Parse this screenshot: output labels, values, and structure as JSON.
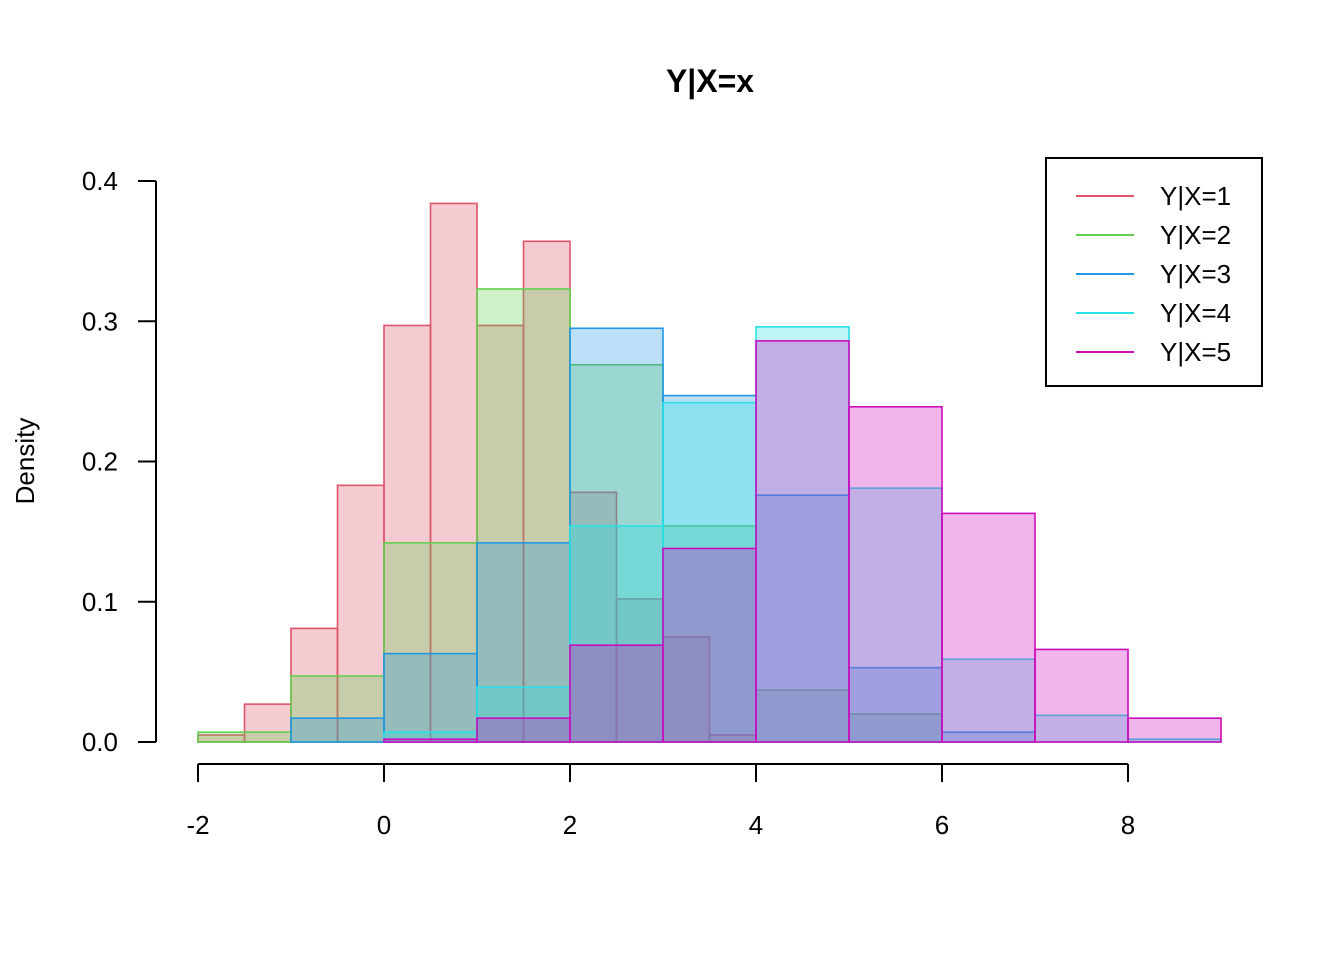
{
  "chart_data": {
    "type": "histogram",
    "title": "Y|X=x",
    "xlabel": "",
    "ylabel": "Density",
    "xlim": [
      -2,
      9
    ],
    "ylim": [
      0,
      0.4
    ],
    "x_ticks": [
      "-2",
      "0",
      "2",
      "4",
      "6",
      "8"
    ],
    "y_ticks": [
      "0.0",
      "0.1",
      "0.2",
      "0.3",
      "0.4"
    ],
    "grid": false,
    "legend_position": "top-right",
    "series": [
      {
        "name": "Y|X=1",
        "color": "#DF536B",
        "fill": "rgba(223,83,107,0.3)",
        "bin_start": -2,
        "bin_width": 0.5,
        "values": [
          0.005,
          0.027,
          0.081,
          0.183,
          0.297,
          0.384,
          0.297,
          0.357,
          0.178,
          0.102,
          0.075,
          0.005
        ]
      },
      {
        "name": "Y|X=2",
        "color": "#61D04F",
        "fill": "rgba(97,208,79,0.3)",
        "bin_start": -2,
        "bin_width": 1,
        "values": [
          0.007,
          0.047,
          0.142,
          0.323,
          0.269,
          0.154,
          0.037,
          0.02
        ]
      },
      {
        "name": "Y|X=3",
        "color": "#2297E6",
        "fill": "rgba(34,151,230,0.3)",
        "bin_start": -1,
        "bin_width": 1,
        "values": [
          0.017,
          0.063,
          0.142,
          0.295,
          0.247,
          0.176,
          0.053,
          0.007
        ]
      },
      {
        "name": "Y|X=4",
        "color": "#28E2E5",
        "fill": "rgba(40,226,229,0.3)",
        "bin_start": 0,
        "bin_width": 1,
        "values": [
          0.007,
          0.039,
          0.154,
          0.242,
          0.296,
          0.181,
          0.059,
          0.019,
          0.002
        ]
      },
      {
        "name": "Y|X=5",
        "color": "#CD0BBC",
        "fill": "rgba(205,11,188,0.3)",
        "bin_start": 0,
        "bin_width": 1,
        "values": [
          0.002,
          0.017,
          0.069,
          0.138,
          0.286,
          0.239,
          0.163,
          0.066,
          0.017
        ]
      }
    ]
  }
}
